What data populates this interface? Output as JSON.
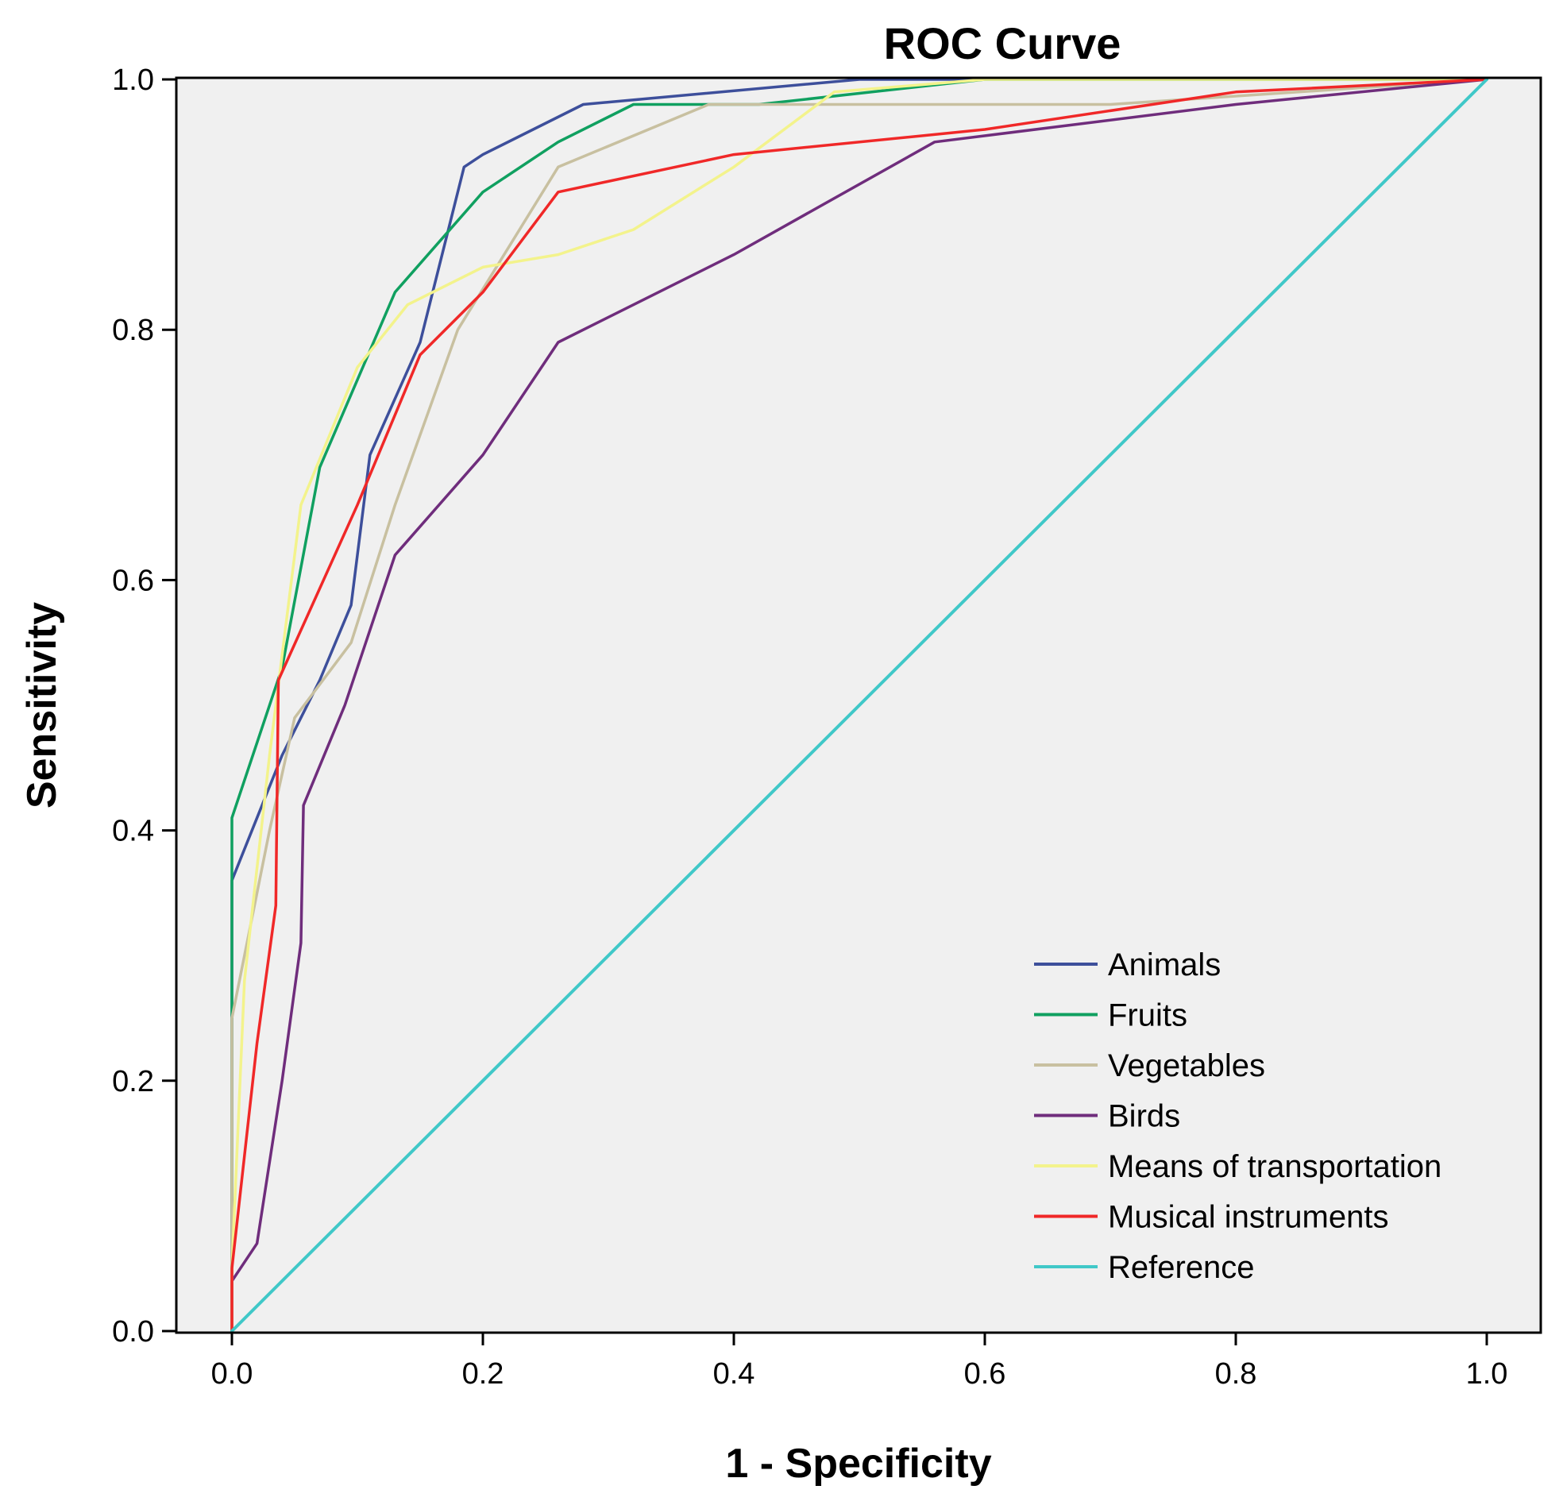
{
  "chart_data": {
    "type": "line",
    "title": "ROC Curve",
    "xlabel": "1 - Specificity",
    "ylabel": "Sensitivity",
    "xlim": [
      0.0,
      1.0
    ],
    "ylim": [
      0.0,
      1.0
    ],
    "x_ticks": [
      "0.0",
      "0.2",
      "0.4",
      "0.6",
      "0.8",
      "1.0"
    ],
    "y_ticks": [
      "0.0",
      "0.2",
      "0.4",
      "0.6",
      "0.8",
      "1.0"
    ],
    "grid": false,
    "legend_position": "bottom-right",
    "background_color": "#f0f0f0",
    "series": [
      {
        "name": "Animals",
        "color": "#3d4f9b",
        "points": [
          [
            0,
            0
          ],
          [
            0,
            0.36
          ],
          [
            0.02,
            0.41
          ],
          [
            0.04,
            0.46
          ],
          [
            0.07,
            0.52
          ],
          [
            0.095,
            0.58
          ],
          [
            0.11,
            0.7
          ],
          [
            0.15,
            0.79
          ],
          [
            0.185,
            0.93
          ],
          [
            0.2,
            0.94
          ],
          [
            0.28,
            0.98
          ],
          [
            0.5,
            1.0
          ],
          [
            1.0,
            1.0
          ]
        ]
      },
      {
        "name": "Fruits",
        "color": "#10a060",
        "points": [
          [
            0,
            0
          ],
          [
            0,
            0.41
          ],
          [
            0.04,
            0.53
          ],
          [
            0.07,
            0.69
          ],
          [
            0.13,
            0.83
          ],
          [
            0.2,
            0.91
          ],
          [
            0.26,
            0.95
          ],
          [
            0.32,
            0.98
          ],
          [
            0.42,
            0.98
          ],
          [
            0.6,
            1.0
          ],
          [
            1.0,
            1.0
          ]
        ]
      },
      {
        "name": "Vegetables",
        "color": "#c8c0a0",
        "points": [
          [
            0,
            0
          ],
          [
            0,
            0.25
          ],
          [
            0.03,
            0.4
          ],
          [
            0.05,
            0.49
          ],
          [
            0.095,
            0.55
          ],
          [
            0.13,
            0.66
          ],
          [
            0.18,
            0.8
          ],
          [
            0.26,
            0.93
          ],
          [
            0.38,
            0.98
          ],
          [
            0.7,
            0.98
          ],
          [
            1.0,
            1.0
          ]
        ]
      },
      {
        "name": "Birds",
        "color": "#6f2d7c",
        "points": [
          [
            0,
            0
          ],
          [
            0,
            0.04
          ],
          [
            0.02,
            0.07
          ],
          [
            0.04,
            0.2
          ],
          [
            0.055,
            0.31
          ],
          [
            0.057,
            0.42
          ],
          [
            0.09,
            0.5
          ],
          [
            0.13,
            0.62
          ],
          [
            0.2,
            0.7
          ],
          [
            0.26,
            0.79
          ],
          [
            0.4,
            0.86
          ],
          [
            0.56,
            0.95
          ],
          [
            0.8,
            0.98
          ],
          [
            1.0,
            1.0
          ]
        ]
      },
      {
        "name": "Means of transportation",
        "color": "#f3f38c",
        "points": [
          [
            0,
            0
          ],
          [
            0,
            0.05
          ],
          [
            0.01,
            0.28
          ],
          [
            0.03,
            0.46
          ],
          [
            0.055,
            0.66
          ],
          [
            0.1,
            0.77
          ],
          [
            0.14,
            0.82
          ],
          [
            0.2,
            0.85
          ],
          [
            0.26,
            0.86
          ],
          [
            0.32,
            0.88
          ],
          [
            0.4,
            0.93
          ],
          [
            0.48,
            0.99
          ],
          [
            0.6,
            1.0
          ],
          [
            1.0,
            1.0
          ]
        ]
      },
      {
        "name": "Musical instruments",
        "color": "#f02828",
        "points": [
          [
            0,
            0
          ],
          [
            0,
            0.05
          ],
          [
            0.02,
            0.23
          ],
          [
            0.035,
            0.34
          ],
          [
            0.037,
            0.52
          ],
          [
            0.1,
            0.66
          ],
          [
            0.15,
            0.78
          ],
          [
            0.2,
            0.83
          ],
          [
            0.26,
            0.91
          ],
          [
            0.4,
            0.94
          ],
          [
            0.6,
            0.96
          ],
          [
            0.8,
            0.99
          ],
          [
            1.0,
            1.0
          ]
        ]
      },
      {
        "name": "Reference",
        "color": "#40c8c8",
        "points": [
          [
            0,
            0
          ],
          [
            1,
            1
          ]
        ]
      }
    ]
  }
}
